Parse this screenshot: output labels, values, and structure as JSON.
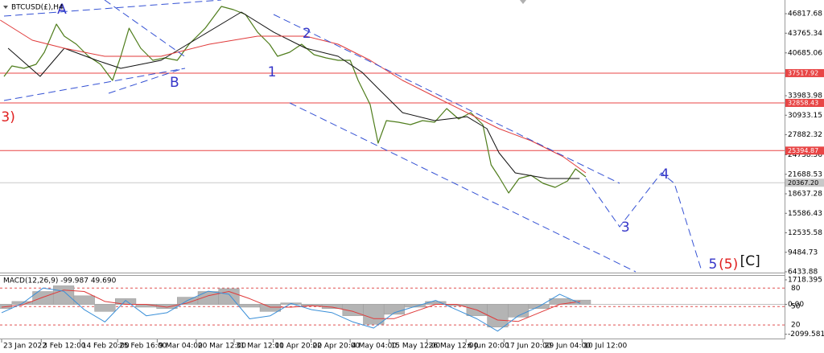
{
  "chart_data": [
    {
      "type": "line",
      "title": "BTCUSD(£),H4",
      "xlim": [
        -0.467,
        227.3
      ],
      "ylim": [
        6310,
        48960
      ],
      "xticks": [
        {
          "value": 0,
          "label": "23 Jan 2022"
        },
        {
          "value": 11.5,
          "label": "3 Feb 12:00"
        },
        {
          "value": 22.83,
          "label": "14 Feb 20:00"
        },
        {
          "value": 33.67,
          "label": "25 Feb 16:00"
        },
        {
          "value": 45.17,
          "label": "9 Mar 04:00"
        },
        {
          "value": 56.5,
          "label": "20 Mar 12:00"
        },
        {
          "value": 67.5,
          "label": "31 Mar 12:00"
        },
        {
          "value": 78.83,
          "label": "11 Apr 20:00"
        },
        {
          "value": 89.83,
          "label": "22 Apr 20:00"
        },
        {
          "value": 101.17,
          "label": "4 May 04:00"
        },
        {
          "value": 112.5,
          "label": "15 May 12:00"
        },
        {
          "value": 123.5,
          "label": "26 May 12:00"
        },
        {
          "value": 134.83,
          "label": "6 Jun 20:00"
        },
        {
          "value": 145.83,
          "label": "17 Jun 20:00"
        },
        {
          "value": 157.17,
          "label": "29 Jun 04:00"
        },
        {
          "value": 168.5,
          "label": "10 Jul 12:00"
        }
      ],
      "yticks": [
        46817.68,
        43765.34,
        40685.06,
        33983.98,
        30933.15,
        27882.32,
        24738.56,
        21688.53,
        18637.28,
        15586.43,
        12535.58,
        9484.73,
        6433.88
      ],
      "levels": [
        {
          "value": 37517.92,
          "color": "#e84545"
        },
        {
          "value": 32858.43,
          "color": "#e84545"
        },
        {
          "value": 25394.87,
          "color": "#e84545"
        },
        {
          "value": 20367.2,
          "label": "20367.20",
          "color": "#c8c8c8"
        }
      ],
      "series": [
        {
          "color": "#4f7d1c",
          "x": [
            0.7,
            3,
            6.5,
            10,
            12.4,
            15.9,
            18.2,
            21.7,
            25.2,
            28.7,
            32.2,
            34.6,
            37,
            40.4,
            43.9,
            47.4,
            51,
            54.4,
            59.1,
            63.8,
            67.3,
            70.8,
            74.3,
            77.8,
            80.1,
            83.6,
            87.1,
            90.7,
            94.2,
            97.7,
            101.2,
            103.5,
            107,
            109.3,
            111.7,
            115.2,
            118.7,
            122.2,
            125.7,
            129.2,
            132.7,
            136.2,
            139.7,
            142.1,
            144.4,
            147.2,
            150.2,
            153.7,
            157.2,
            160.7,
            164.3,
            166.6,
            169.6
          ],
          "values": [
            37000,
            38640,
            38260,
            38890,
            40780,
            45180,
            43300,
            42040,
            40150,
            38890,
            36380,
            40150,
            44550,
            41410,
            39520,
            39900,
            39520,
            42040,
            44550,
            47950,
            47450,
            46690,
            43920,
            42040,
            40150,
            40780,
            42040,
            40400,
            39900,
            39520,
            39520,
            36380,
            32600,
            26560,
            30090,
            29840,
            29460,
            30090,
            29840,
            31970,
            30340,
            31340,
            29460,
            23170,
            21280,
            18760,
            21030,
            21530,
            20270,
            19640,
            20650,
            22540,
            21280
          ]
        },
        {
          "color": "#111111",
          "x": [
            1.9,
            11.2,
            18.2,
            27.6,
            34.6,
            46.3,
            57.9,
            69.6,
            79,
            88.3,
            97.7,
            104.7,
            109.3,
            116.4,
            125.7,
            135.1,
            140.9,
            144.4,
            149.1,
            158.4,
            167.8
          ],
          "values": [
            41410,
            37010,
            41410,
            39520,
            38260,
            39520,
            43300,
            47070,
            43920,
            41410,
            40150,
            37630,
            35120,
            31340,
            30090,
            30710,
            28830,
            25050,
            21910,
            21030,
            21030
          ]
        },
        {
          "color": "#e03a3a",
          "x": [
            -0.4,
            8.9,
            18.2,
            29.9,
            46.3,
            60.3,
            74.3,
            88.3,
            97.7,
            107,
            116.4,
            125.7,
            135.1,
            144.4,
            153.7,
            163.1,
            169.6
          ],
          "values": [
            45810,
            42670,
            41410,
            40150,
            40150,
            42040,
            43300,
            43300,
            42040,
            39520,
            36380,
            33860,
            31340,
            28830,
            26940,
            24420,
            21910
          ]
        }
      ],
      "annotations": [
        {
          "text": "A",
          "x": 17.5,
          "y": 47450,
          "color": "#3535c8"
        },
        {
          "text": "B",
          "x": 50.2,
          "y": 36000,
          "color": "#3535c8"
        },
        {
          "text": "1",
          "x": 78.5,
          "y": 37630,
          "color": "#3535c8"
        },
        {
          "text": "2",
          "x": 88.6,
          "y": 43670,
          "color": "#3535c8"
        },
        {
          "text": "3",
          "x": 181.1,
          "y": 13360,
          "color": "#3535c8"
        },
        {
          "text": "4",
          "x": 192.5,
          "y": 21660,
          "color": "#3535c8"
        },
        {
          "text": "5",
          "x": 206.5,
          "y": 7570,
          "color": "#3535c8"
        },
        {
          "text": "(5)",
          "x": 211,
          "y": 7570,
          "color": "#e02020"
        },
        {
          "text": "[C]",
          "x": 217.3,
          "y": 8070,
          "color": "#111111"
        },
        {
          "text": "3)",
          "x": 1.9,
          "y": 30590,
          "color": "#e02020"
        }
      ]
    },
    {
      "type": "bar",
      "title": "MACD(12,26,9) -99.987 49.690",
      "xlim": [
        -0.467,
        227.3
      ],
      "ylim": [
        -2400,
        2000
      ],
      "y2lim": [
        -2,
        100
      ],
      "yticks": [
        1718.395,
        {
          "value": 0,
          "label": "0.00"
        },
        -2099.581
      ],
      "y2ticks": [
        80,
        50,
        20
      ],
      "color": "#b4b4b4",
      "x": [
        0,
        6,
        12,
        18,
        24,
        30,
        36,
        42,
        48,
        54,
        60,
        66,
        72,
        78,
        84,
        90,
        96,
        102,
        108,
        114,
        120,
        126,
        132,
        138,
        144,
        150,
        156,
        162,
        168
      ],
      "values": [
        -300,
        200,
        900,
        1300,
        600,
        -500,
        400,
        -200,
        -300,
        500,
        900,
        1100,
        -200,
        -500,
        100,
        -100,
        -300,
        -800,
        -1400,
        -700,
        -200,
        200,
        -100,
        -800,
        -1600,
        -900,
        -300,
        400,
        300
      ],
      "series": [
        {
          "color": "#e03a3a",
          "values": [
            -200,
            -50,
            500,
            1000,
            900,
            200,
            0,
            0,
            -200,
            100,
            600,
            900,
            400,
            -200,
            -200,
            -100,
            -200,
            -500,
            -1000,
            -1000,
            -500,
            0,
            0,
            -400,
            -1100,
            -1200,
            -600,
            0,
            200
          ]
        },
        {
          "color": "#3a8fd8",
          "axis": "y2",
          "values": [
            40,
            55,
            80,
            75,
            45,
            25,
            60,
            35,
            40,
            60,
            75,
            70,
            30,
            35,
            55,
            45,
            40,
            25,
            15,
            40,
            50,
            60,
            45,
            30,
            10,
            35,
            50,
            70,
            55
          ]
        }
      ]
    }
  ]
}
